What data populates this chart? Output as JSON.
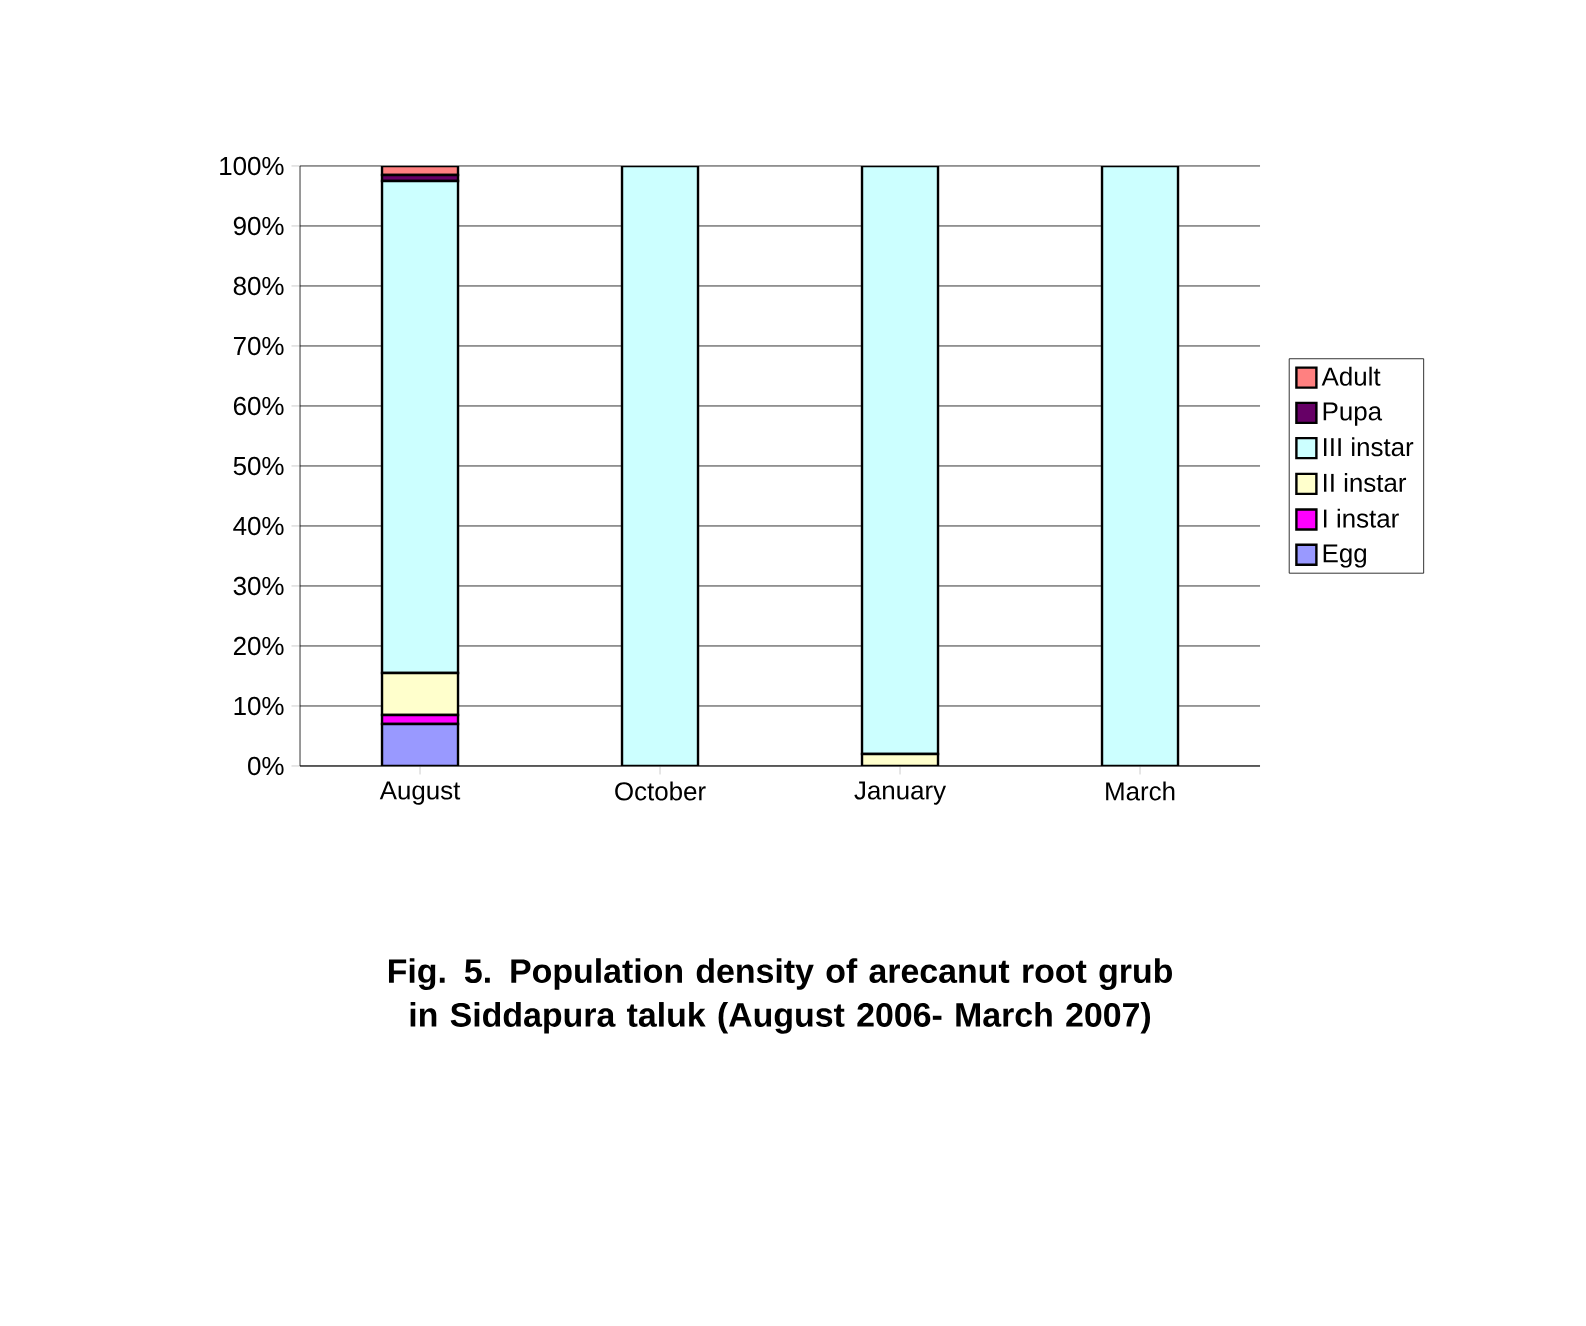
{
  "chart_data": {
    "type": "bar",
    "stacked": true,
    "title": "Fig. 5. Population density of arecanut  root grub in Siddapura taluk (August 2006- March 2007)",
    "categories": [
      "August",
      "October",
      "January",
      "March"
    ],
    "series": [
      {
        "name": "Egg",
        "color": "#9999ff",
        "values": [
          7,
          0,
          0,
          0
        ]
      },
      {
        "name": "I instar",
        "color": "#ff00ff",
        "values": [
          1.5,
          0,
          0,
          0
        ]
      },
      {
        "name": "II instar",
        "color": "#ffffcc",
        "values": [
          7,
          0,
          2,
          0
        ]
      },
      {
        "name": "III instar",
        "color": "#ccffff",
        "values": [
          82,
          100,
          98,
          100
        ]
      },
      {
        "name": "Pupa",
        "color": "#660066",
        "values": [
          1,
          0,
          0,
          0
        ]
      },
      {
        "name": "Adult",
        "color": "#ff8080",
        "values": [
          1.5,
          0,
          0,
          0
        ]
      }
    ],
    "ylim": [
      0,
      100
    ],
    "yticks": [
      {
        "value": 0,
        "label": "0%"
      },
      {
        "value": 10,
        "label": "10%"
      },
      {
        "value": 20,
        "label": "20%"
      },
      {
        "value": 30,
        "label": "30%"
      },
      {
        "value": 40,
        "label": "40%"
      },
      {
        "value": 50,
        "label": "50%"
      },
      {
        "value": 60,
        "label": "60%"
      },
      {
        "value": 70,
        "label": "70%"
      },
      {
        "value": 80,
        "label": "80%"
      },
      {
        "value": 90,
        "label": "90%"
      },
      {
        "value": 100,
        "label": "100%"
      }
    ],
    "grid": "y",
    "legend": "right"
  }
}
